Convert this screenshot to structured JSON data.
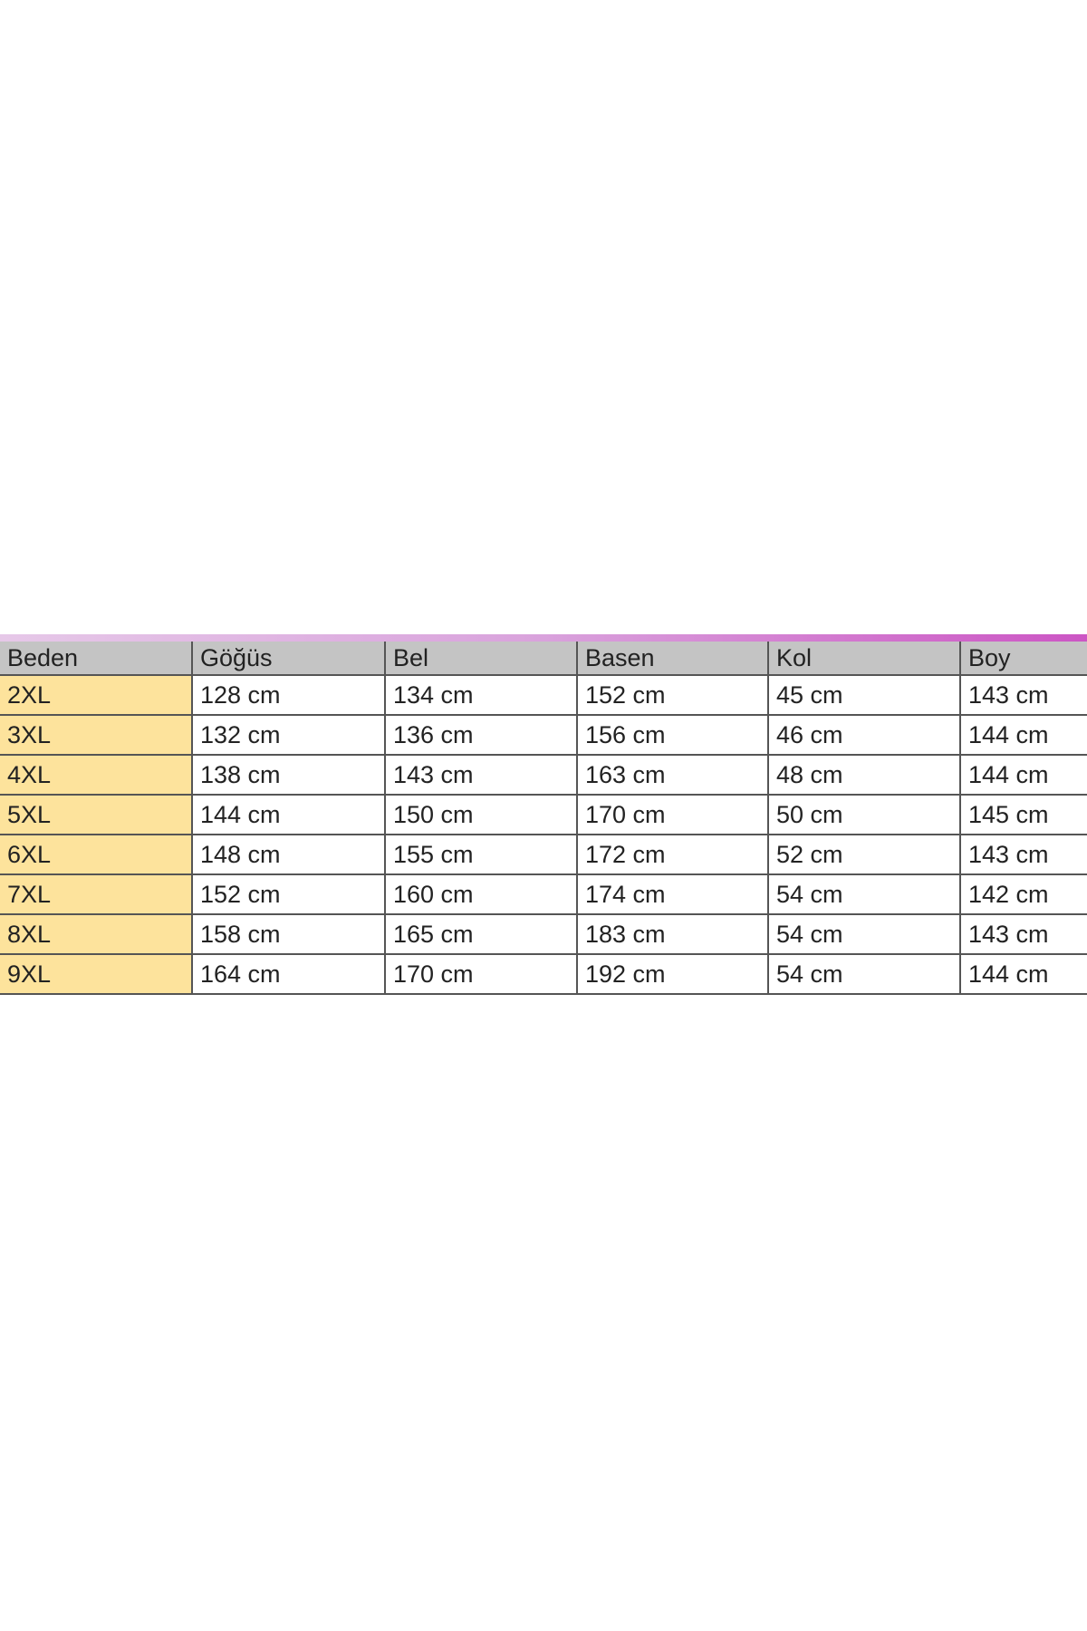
{
  "table": {
    "header": [
      "Beden",
      "Göğüs",
      "Bel",
      "Basen",
      "Kol",
      "Boy"
    ],
    "rows": [
      [
        "2XL",
        "128 cm",
        "134 cm",
        "152 cm",
        "45 cm",
        "143 cm"
      ],
      [
        "3XL",
        "132 cm",
        "136 cm",
        "156 cm",
        "46 cm",
        "144 cm"
      ],
      [
        "4XL",
        "138 cm",
        "143 cm",
        "163 cm",
        "48 cm",
        "144 cm"
      ],
      [
        "5XL",
        "144 cm",
        "150 cm",
        "170 cm",
        "50 cm",
        "145 cm"
      ],
      [
        "6XL",
        "148 cm",
        "155 cm",
        "172 cm",
        "52 cm",
        "143 cm"
      ],
      [
        "7XL",
        "152 cm",
        "160 cm",
        "174 cm",
        "54 cm",
        "142 cm"
      ],
      [
        "8XL",
        "158 cm",
        "165 cm",
        "183 cm",
        "54 cm",
        "143 cm"
      ],
      [
        "9XL",
        "164 cm",
        "170 cm",
        "192 cm",
        "54 cm",
        "144 cm"
      ]
    ]
  }
}
